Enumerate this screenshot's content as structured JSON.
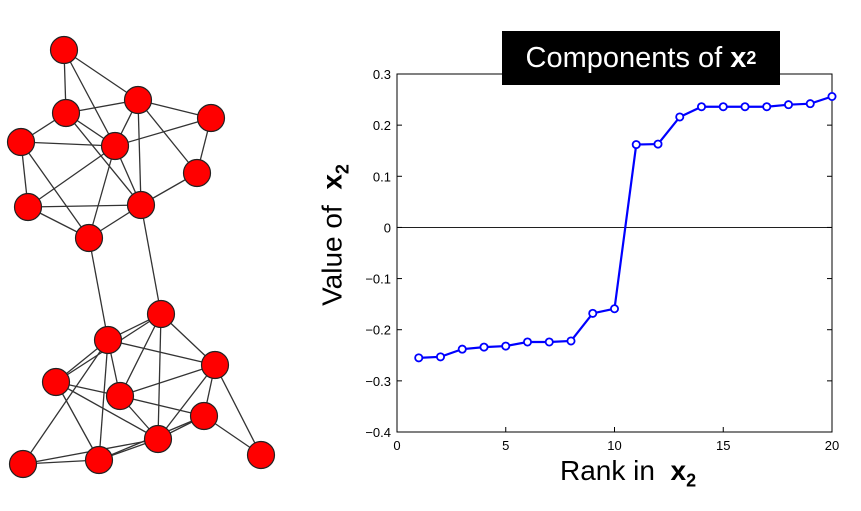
{
  "title": {
    "text": "Components of ",
    "var": "x",
    "sub": "2"
  },
  "xlabel": {
    "text": "Rank in ",
    "var": "x",
    "sub": "2"
  },
  "ylabel": {
    "text": "Value of ",
    "var": "x",
    "sub": "2"
  },
  "colors": {
    "node": "#ff0000",
    "line": "#0000ff",
    "title_bg": "#000000"
  },
  "chart_data": {
    "type": "line",
    "xlim": [
      0,
      20
    ],
    "ylim": [
      -0.4,
      0.3
    ],
    "xticks": [
      0,
      5,
      10,
      15,
      20
    ],
    "yticks": [
      -0.4,
      -0.3,
      -0.2,
      -0.1,
      0,
      0.1,
      0.2,
      0.3
    ],
    "ytick_labels": [
      "−0.4",
      "−0.3",
      "−0.2",
      "−0.1",
      "0",
      "0.1",
      "0.2",
      "0.3"
    ],
    "zero_line": true,
    "grid": false,
    "x": [
      1,
      2,
      3,
      4,
      5,
      6,
      7,
      8,
      9,
      10,
      11,
      12,
      13,
      14,
      15,
      16,
      17,
      18,
      19,
      20
    ],
    "values": [
      -0.255,
      -0.253,
      -0.238,
      -0.234,
      -0.232,
      -0.224,
      -0.224,
      -0.222,
      -0.168,
      -0.159,
      0.162,
      0.163,
      0.216,
      0.236,
      0.236,
      0.236,
      0.236,
      0.24,
      0.242,
      0.256
    ]
  }
}
